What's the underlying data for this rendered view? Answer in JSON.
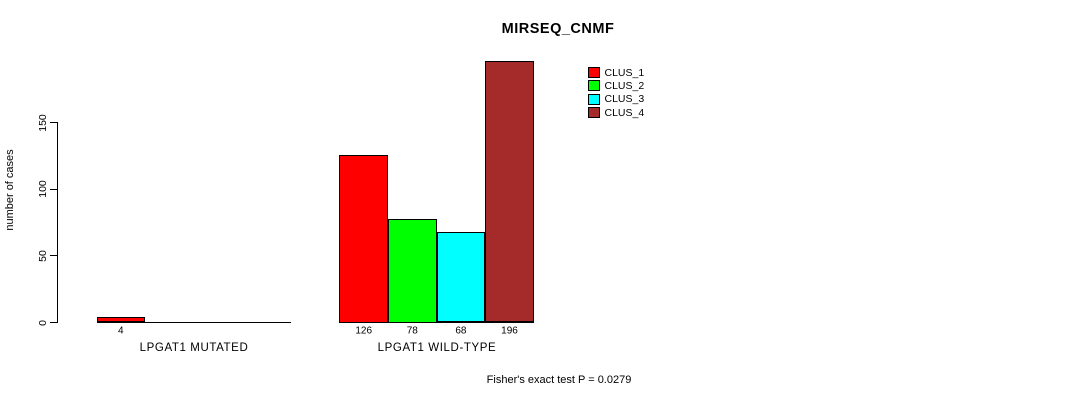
{
  "page": {
    "background_color": "#ffffff",
    "text_color": "#000000"
  },
  "chart_data": {
    "type": "bar",
    "title": "MIRSEQ_CNMF",
    "xlabel": "",
    "ylabel": "number of cases",
    "categories": [
      "LPGAT1 MUTATED",
      "LPGAT1 WILD-TYPE"
    ],
    "series": [
      {
        "name": "CLUS_1",
        "color": "#ff0000",
        "values": [
          4,
          126
        ]
      },
      {
        "name": "CLUS_2",
        "color": "#00ff00",
        "values": [
          0,
          78
        ]
      },
      {
        "name": "CLUS_3",
        "color": "#00ffff",
        "values": [
          0,
          68
        ]
      },
      {
        "name": "CLUS_4",
        "color": "#a52a2a",
        "values": [
          0,
          196
        ]
      }
    ],
    "bar_value_labels": {
      "LPGAT1 MUTATED": [
        4,
        null,
        null,
        null
      ],
      "LPGAT1 WILD-TYPE": [
        126,
        78,
        68,
        196
      ]
    },
    "yticks": [
      0,
      50,
      100,
      150
    ],
    "ylim": [
      0,
      205
    ],
    "grid": false,
    "legend_position": "top-right",
    "legend_entries": [
      "CLUS_1",
      "CLUS_2",
      "CLUS_3",
      "CLUS_4"
    ],
    "annotation": "Fisher's exact test P = 0.0279"
  }
}
